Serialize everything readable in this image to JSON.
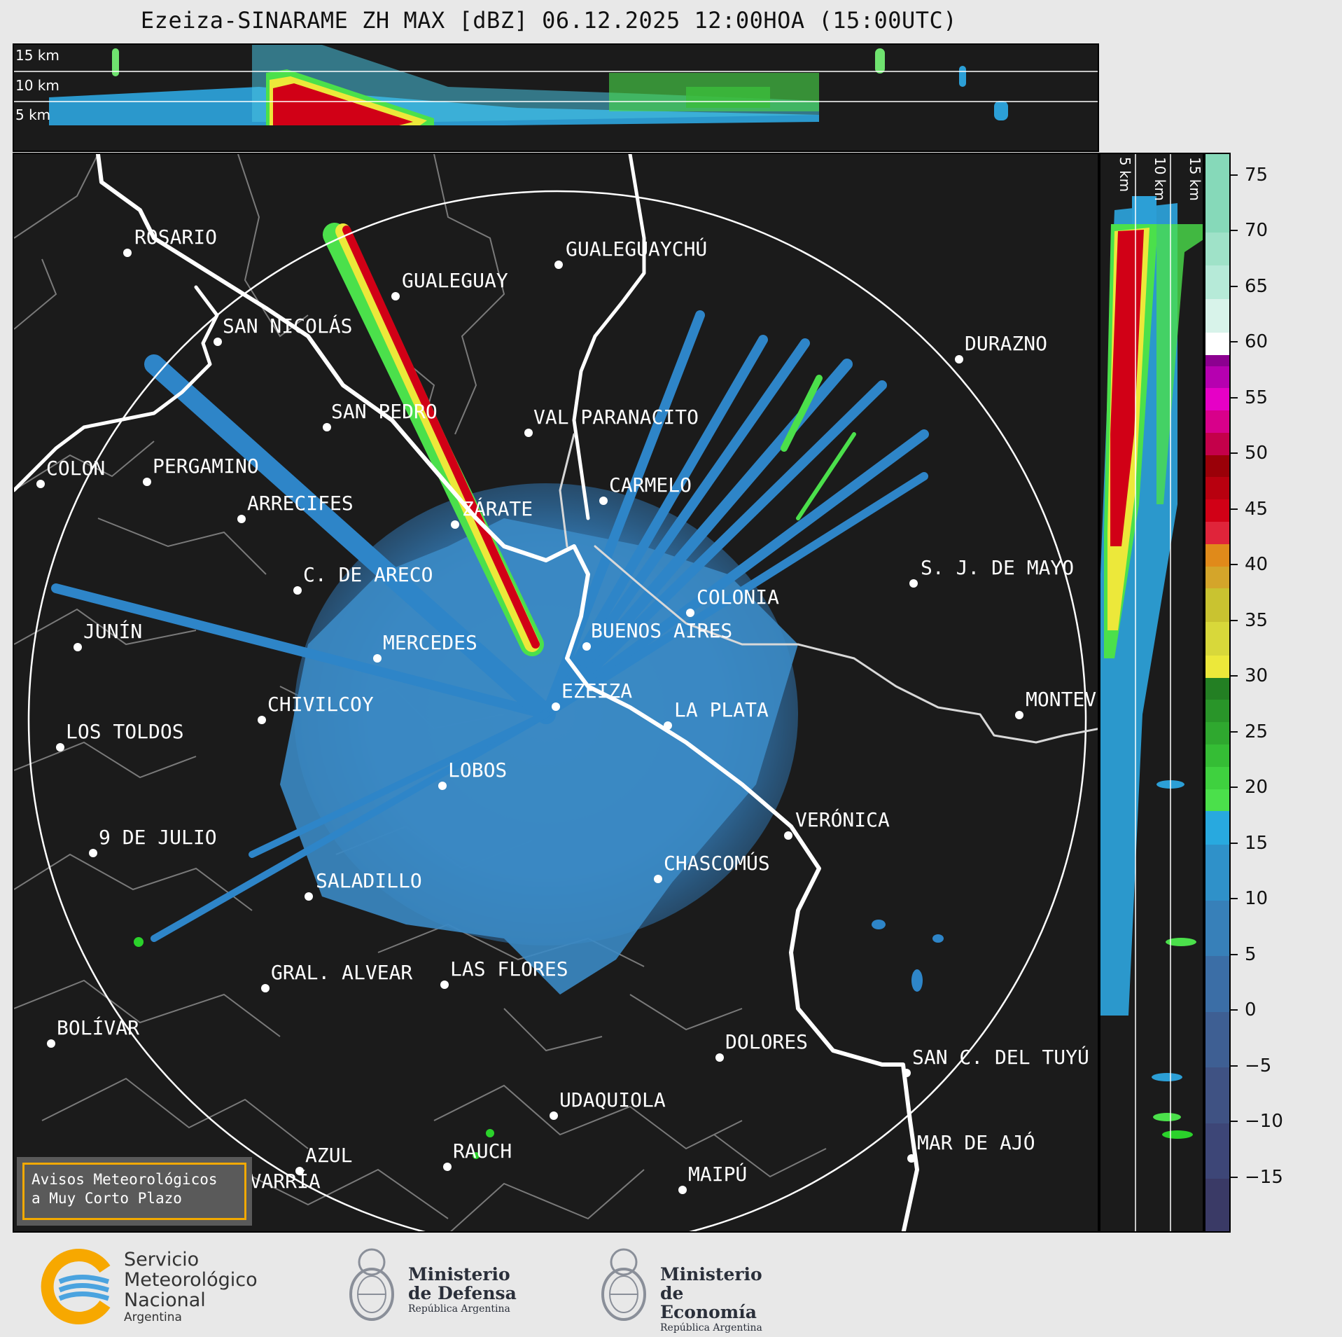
{
  "header": {
    "title": "Ezeiza-SINARAME ZH MAX [dBZ] 06.12.2025 12:00HOA (15:00UTC)"
  },
  "top_panel": {
    "altitudes": [
      "15 km",
      "10 km",
      "5 km"
    ]
  },
  "side_panel": {
    "altitudes": [
      "5 km",
      "10 km",
      "15 km"
    ]
  },
  "cities": [
    {
      "name": "ROSARIO"
    },
    {
      "name": "GUALEGUAYCHÚ"
    },
    {
      "name": "GUALEGUAY"
    },
    {
      "name": "SAN NICOLÁS"
    },
    {
      "name": "DURAZNO"
    },
    {
      "name": "SAN PEDRO"
    },
    {
      "name": "VAL PARANACITO"
    },
    {
      "name": "COLON"
    },
    {
      "name": "PERGAMINO"
    },
    {
      "name": "CARMELO"
    },
    {
      "name": "ARRECIFES"
    },
    {
      "name": "ZÁRATE"
    },
    {
      "name": "S. J. DE MAYO"
    },
    {
      "name": "C. DE ARECO"
    },
    {
      "name": "COLONIA"
    },
    {
      "name": "JUNÍN"
    },
    {
      "name": "BUENOS AIRES"
    },
    {
      "name": "MERCEDES"
    },
    {
      "name": "MONTEVIDEO"
    },
    {
      "name": "EZEIZA"
    },
    {
      "name": "CHIVILCOY"
    },
    {
      "name": "LA PLATA"
    },
    {
      "name": "LOS TOLDOS"
    },
    {
      "name": "LOBOS"
    },
    {
      "name": "VERÓNICA"
    },
    {
      "name": "9 DE JULIO"
    },
    {
      "name": "CHASCOMÚS"
    },
    {
      "name": "SALADILLO"
    },
    {
      "name": "GRAL. ALVEAR"
    },
    {
      "name": "LAS FLORES"
    },
    {
      "name": "BOLÍVAR"
    },
    {
      "name": "DOLORES"
    },
    {
      "name": "SAN C. DEL TUYÚ"
    },
    {
      "name": "UDAQUIOLA"
    },
    {
      "name": "MAR DE AJÓ"
    },
    {
      "name": "AZUL"
    },
    {
      "name": "RAUCH"
    },
    {
      "name": "OLAVARRÍA"
    },
    {
      "name": "MAIPÚ"
    }
  ],
  "colorbar": {
    "ticks": [
      "75",
      "70",
      "65",
      "60",
      "55",
      "50",
      "45",
      "40",
      "35",
      "30",
      "25",
      "20",
      "15",
      "10",
      "5",
      "0",
      "−5",
      "−10",
      "−15"
    ],
    "range": [
      -20,
      77
    ]
  },
  "avisos": {
    "text": "Avisos Meteorológicos\na Muy Corto Plazo"
  },
  "logos": {
    "smn": {
      "line1": "Servicio",
      "line2": "Meteorológico",
      "line3": "Nacional",
      "line4": "Argentina"
    },
    "defensa": {
      "line1": "Ministerio",
      "line2": "de Defensa",
      "line3": "República Argentina"
    },
    "economia": {
      "line1": "Ministerio",
      "line2": "de Economía",
      "line3": "República Argentina"
    }
  },
  "colors": {
    "background": "#1b1b1b",
    "echo_weak": "#3a86c4",
    "echo_mid": "#4be04b",
    "echo_strong": "#d10016",
    "accent_box": "#f2a900"
  }
}
